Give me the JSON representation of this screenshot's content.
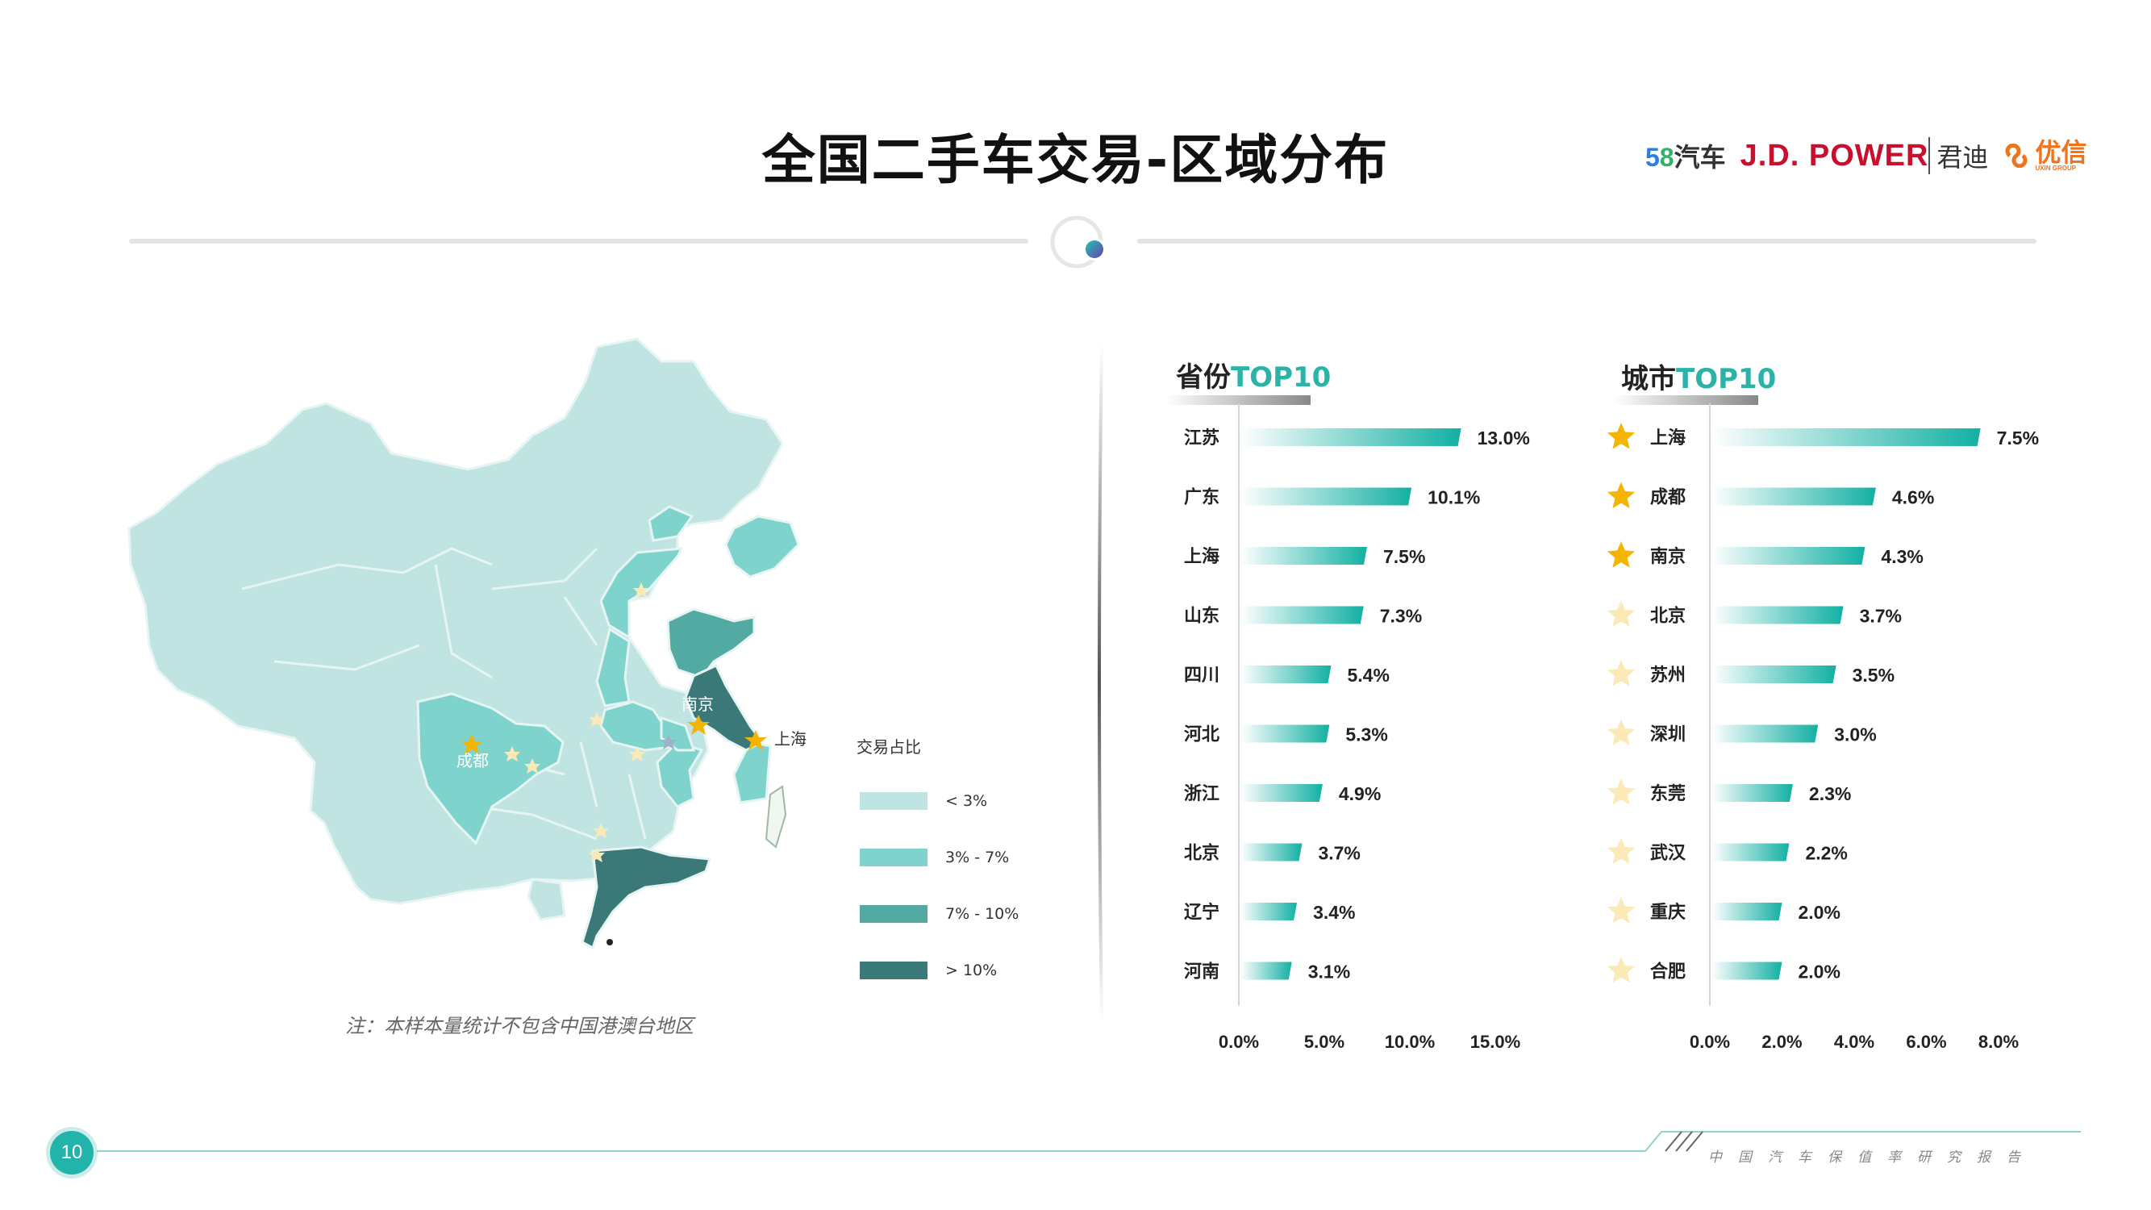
{
  "title": "全国二手车交易-区域分布",
  "brands": {
    "b58": "汽车",
    "b58_digits": [
      "5",
      "8"
    ],
    "jdpower": "J.D. POWER",
    "jundi": "君迪",
    "youxin": "优信",
    "youxin_sub": "UXIN GROUP"
  },
  "map": {
    "legend_title": "交易占比",
    "legend": [
      {
        "label": "< 3%",
        "color": "#bfe4e1"
      },
      {
        "label": "3% - 7%",
        "color": "#7fd3cd"
      },
      {
        "label": "7% - 10%",
        "color": "#52aaa2"
      },
      {
        "label": "> 10%",
        "color": "#3b7878"
      }
    ],
    "city_labels": {
      "chengdu": "成都",
      "nanjing": "南京",
      "shanghai": "上海"
    },
    "note": "注：本样本量统计不包含中国港澳台地区"
  },
  "colors": {
    "accent": "#2bb3a8",
    "bar": "#12b0a3",
    "star_main": "#f4b400",
    "star_faint": "#fbe9b8"
  },
  "chart_data": [
    {
      "type": "bar",
      "orientation": "horizontal",
      "title": "省份TOP10",
      "title_parts": [
        "省份",
        "TOP10"
      ],
      "categories": [
        "江苏",
        "广东",
        "上海",
        "山东",
        "四川",
        "河北",
        "浙江",
        "北京",
        "辽宁",
        "河南"
      ],
      "values": [
        13.0,
        10.1,
        7.5,
        7.3,
        5.4,
        5.3,
        4.9,
        3.7,
        3.4,
        3.1
      ],
      "value_labels": [
        "13.0%",
        "10.1%",
        "7.5%",
        "7.3%",
        "5.4%",
        "5.3%",
        "4.9%",
        "3.7%",
        "3.4%",
        "3.1%"
      ],
      "xlim": [
        0,
        15
      ],
      "xticks": [
        "0.0%",
        "5.0%",
        "10.0%",
        "15.0%"
      ],
      "grid": false
    },
    {
      "type": "bar",
      "orientation": "horizontal",
      "title": "城市TOP10",
      "title_parts": [
        "城市",
        "TOP10"
      ],
      "categories": [
        "上海",
        "成都",
        "南京",
        "北京",
        "苏州",
        "深圳",
        "东莞",
        "武汉",
        "重庆",
        "合肥"
      ],
      "values": [
        7.5,
        4.6,
        4.3,
        3.7,
        3.5,
        3.0,
        2.3,
        2.2,
        2.0,
        2.0
      ],
      "value_labels": [
        "7.5%",
        "4.6%",
        "4.3%",
        "3.7%",
        "3.5%",
        "3.0%",
        "2.3%",
        "2.2%",
        "2.0%",
        "2.0%"
      ],
      "highlighted": [
        true,
        true,
        true,
        false,
        false,
        false,
        false,
        false,
        false,
        false
      ],
      "xlim": [
        0,
        8
      ],
      "xticks": [
        "0.0%",
        "2.0%",
        "4.0%",
        "6.0%",
        "8.0%"
      ],
      "grid": false
    }
  ],
  "footer": {
    "page_number": "10",
    "report_name": "中国汽车保值率研究报告"
  }
}
